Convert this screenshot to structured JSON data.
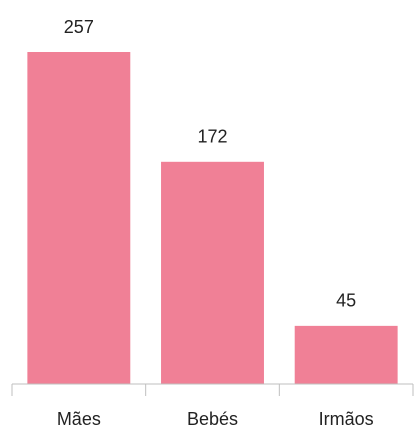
{
  "chart_data": {
    "type": "bar",
    "categories": [
      "Mães",
      "Bebés",
      "Irmãos"
    ],
    "values": [
      257,
      172,
      45
    ],
    "color": "#f08096"
  }
}
